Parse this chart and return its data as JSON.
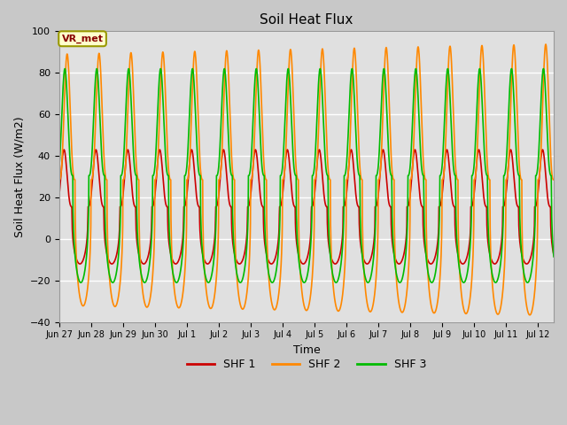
{
  "title": "Soil Heat Flux",
  "xlabel": "Time",
  "ylabel": "Soil Heat Flux (W/m2)",
  "ylim": [
    -40,
    100
  ],
  "yticks": [
    -40,
    -20,
    0,
    20,
    40,
    60,
    80,
    100
  ],
  "annotation_text": "VR_met",
  "legend_labels": [
    "SHF 1",
    "SHF 2",
    "SHF 3"
  ],
  "line_colors": [
    "#cc0000",
    "#ff8800",
    "#00bb00"
  ],
  "fig_bg_color": "#c8c8c8",
  "plot_bg_color": "#e0e0e0",
  "xtick_labels": [
    "Jun 27",
    "Jun 28",
    "Jun 29",
    "Jun 30",
    "Jul 1",
    "Jul 2",
    "Jul 3",
    "Jul 4",
    "Jul 5",
    "Jul 6",
    "Jul 7",
    "Jul 8",
    "Jul 9",
    "Jul 10",
    "Jul 11",
    "Jul 12"
  ],
  "n_days": 15.5,
  "shf1_max": 43,
  "shf1_min": -12,
  "shf2_max": 89,
  "shf2_min": -32,
  "shf3_max": 82,
  "shf3_min": -21,
  "phase_shf1": 0.62,
  "phase_shf2": 0.0,
  "phase_shf3": 0.45,
  "power": 3.0,
  "n_points": 2000
}
